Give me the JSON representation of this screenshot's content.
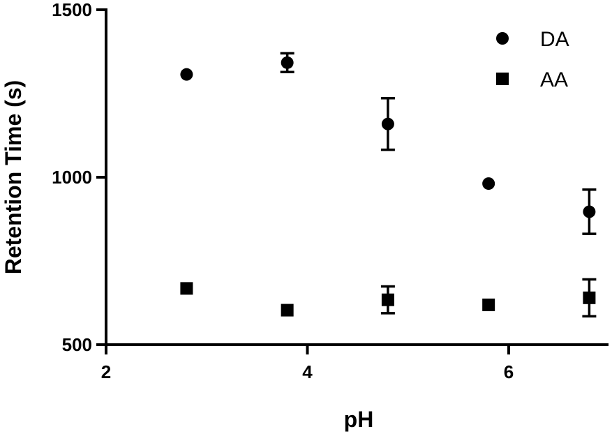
{
  "chart_data": {
    "type": "scatter",
    "xlabel": "pH",
    "ylabel": "Retention Time (s)",
    "xlim": [
      2,
      7
    ],
    "ylim": [
      500,
      1500
    ],
    "xticks": [
      "2",
      "4",
      "6"
    ],
    "yticks": [
      "500",
      "1000",
      "1500"
    ],
    "legend_position": "top-right",
    "series": [
      {
        "name": "DA",
        "marker": "circle",
        "color": "#000000",
        "points": [
          {
            "x": 2.8,
            "y": 1307,
            "err": 0
          },
          {
            "x": 3.8,
            "y": 1342,
            "err": 28
          },
          {
            "x": 4.8,
            "y": 1159,
            "err": 77
          },
          {
            "x": 5.8,
            "y": 981,
            "err": 0
          },
          {
            "x": 6.8,
            "y": 897,
            "err": 66
          }
        ]
      },
      {
        "name": "AA",
        "marker": "square",
        "color": "#000000",
        "points": [
          {
            "x": 2.8,
            "y": 668,
            "err": 0
          },
          {
            "x": 3.8,
            "y": 603,
            "err": 0
          },
          {
            "x": 4.8,
            "y": 634,
            "err": 40
          },
          {
            "x": 5.8,
            "y": 619,
            "err": 0
          },
          {
            "x": 6.8,
            "y": 640,
            "err": 55
          }
        ]
      }
    ]
  }
}
